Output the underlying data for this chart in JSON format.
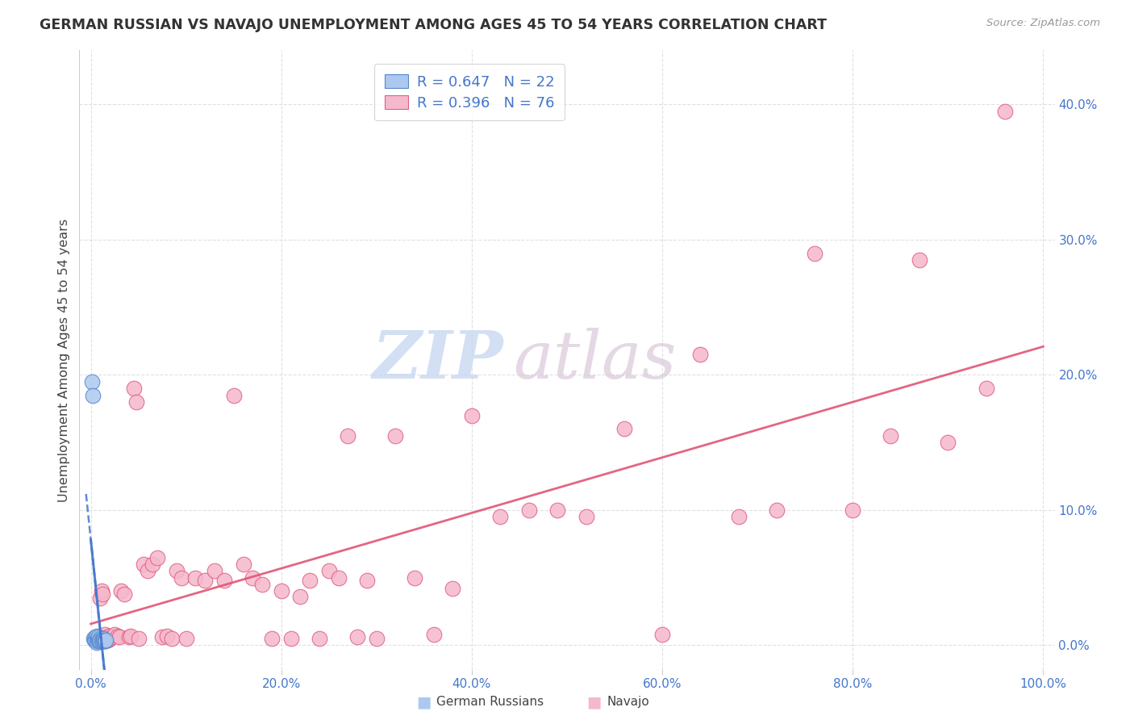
{
  "title": "GERMAN RUSSIAN VS NAVAJO UNEMPLOYMENT AMONG AGES 45 TO 54 YEARS CORRELATION CHART",
  "source": "Source: ZipAtlas.com",
  "ylabel_label": "Unemployment Among Ages 45 to 54 years",
  "gr_R": 0.647,
  "gr_N": 22,
  "nav_R": 0.396,
  "nav_N": 76,
  "gr_color": "#adc8f0",
  "gr_edge_color": "#5588cc",
  "nav_color": "#f5b8cc",
  "nav_edge_color": "#e06080",
  "gr_line_color": "#4477cc",
  "nav_line_color": "#e05575",
  "watermark_zip_color": "#c8d8f0",
  "watermark_atlas_color": "#d8c8d8",
  "bg_color": "#ffffff",
  "grid_color": "#dddddd",
  "title_color": "#333333",
  "source_color": "#999999",
  "tick_color": "#4477cc",
  "legend_text_color": "#4477cc",
  "gr_x": [
    0.001,
    0.002,
    0.003,
    0.004,
    0.005,
    0.005,
    0.006,
    0.006,
    0.007,
    0.007,
    0.008,
    0.008,
    0.009,
    0.01,
    0.01,
    0.011,
    0.012,
    0.013,
    0.013,
    0.014,
    0.015,
    0.016
  ],
  "gr_y": [
    0.195,
    0.185,
    0.005,
    0.004,
    0.006,
    0.003,
    0.007,
    0.002,
    0.005,
    0.003,
    0.004,
    0.006,
    0.003,
    0.005,
    0.004,
    0.004,
    0.003,
    0.005,
    0.004,
    0.003,
    0.003,
    0.004
  ],
  "nav_x": [
    0.006,
    0.008,
    0.01,
    0.011,
    0.012,
    0.013,
    0.014,
    0.015,
    0.015,
    0.016,
    0.017,
    0.018,
    0.019,
    0.02,
    0.022,
    0.025,
    0.028,
    0.03,
    0.032,
    0.035,
    0.04,
    0.042,
    0.045,
    0.048,
    0.05,
    0.055,
    0.06,
    0.065,
    0.07,
    0.075,
    0.08,
    0.085,
    0.09,
    0.095,
    0.1,
    0.11,
    0.12,
    0.13,
    0.14,
    0.15,
    0.16,
    0.17,
    0.18,
    0.19,
    0.2,
    0.21,
    0.22,
    0.23,
    0.24,
    0.25,
    0.26,
    0.27,
    0.28,
    0.29,
    0.3,
    0.32,
    0.34,
    0.36,
    0.38,
    0.4,
    0.43,
    0.46,
    0.49,
    0.52,
    0.56,
    0.6,
    0.64,
    0.68,
    0.72,
    0.76,
    0.8,
    0.84,
    0.87,
    0.9,
    0.94,
    0.96
  ],
  "nav_y": [
    0.003,
    0.004,
    0.035,
    0.04,
    0.038,
    0.004,
    0.005,
    0.003,
    0.008,
    0.005,
    0.006,
    0.004,
    0.007,
    0.005,
    0.006,
    0.008,
    0.007,
    0.006,
    0.04,
    0.038,
    0.006,
    0.007,
    0.19,
    0.18,
    0.005,
    0.06,
    0.055,
    0.06,
    0.065,
    0.006,
    0.007,
    0.005,
    0.055,
    0.05,
    0.005,
    0.05,
    0.048,
    0.055,
    0.048,
    0.185,
    0.06,
    0.05,
    0.045,
    0.005,
    0.04,
    0.005,
    0.036,
    0.048,
    0.005,
    0.055,
    0.05,
    0.155,
    0.006,
    0.048,
    0.005,
    0.155,
    0.05,
    0.008,
    0.042,
    0.17,
    0.095,
    0.1,
    0.1,
    0.095,
    0.16,
    0.008,
    0.215,
    0.095,
    0.1,
    0.29,
    0.1,
    0.155,
    0.285,
    0.15,
    0.19,
    0.395
  ],
  "xlim": [
    -0.012,
    1.012
  ],
  "ylim": [
    -0.018,
    0.44
  ],
  "x_ticks": [
    0.0,
    0.2,
    0.4,
    0.6,
    0.8,
    1.0
  ],
  "y_ticks": [
    0.0,
    0.1,
    0.2,
    0.3,
    0.4
  ]
}
